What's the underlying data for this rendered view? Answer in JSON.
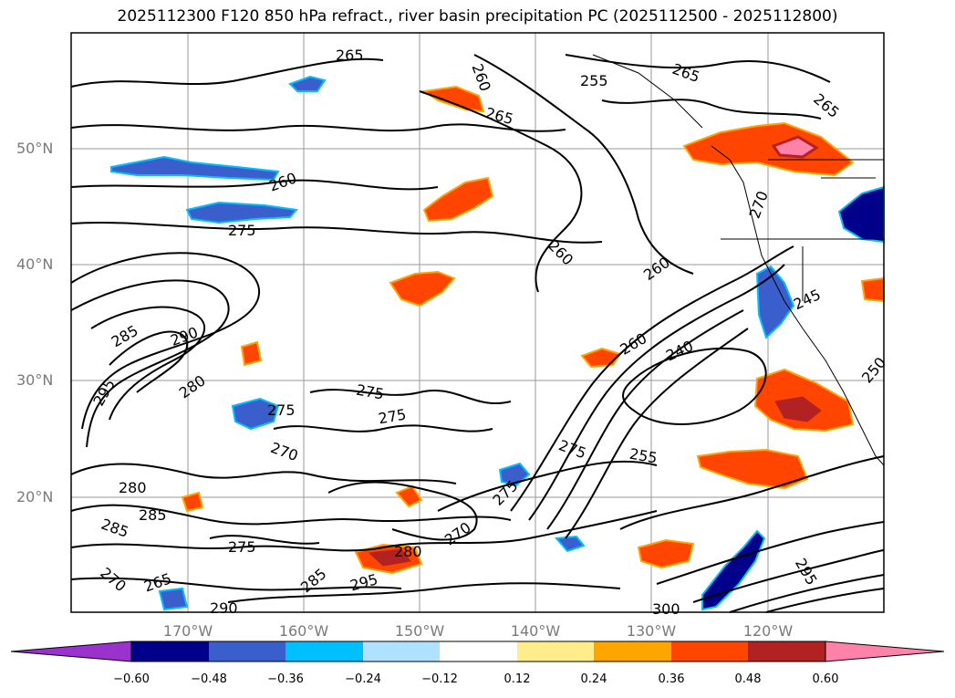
{
  "title": "2025112300 F120 850 hPa refract., river basin precipitation PC (2025112500 - 2025112800)",
  "map": {
    "lat_labels": [
      "50°N",
      "40°N",
      "30°N",
      "20°N"
    ],
    "lon_labels": [
      "170°W",
      "160°W",
      "150°W",
      "140°W",
      "130°W",
      "120°W"
    ],
    "contour_labels": [
      "265",
      "260",
      "265",
      "265",
      "255",
      "260",
      "265",
      "270",
      "275",
      "260",
      "260",
      "285",
      "290",
      "280",
      "295",
      "275",
      "275",
      "275",
      "270",
      "280",
      "285",
      "285",
      "275",
      "265",
      "270",
      "290",
      "285",
      "280",
      "295",
      "275",
      "255",
      "270",
      "240",
      "260",
      "245",
      "250",
      "275",
      "300",
      "295"
    ]
  },
  "colorbar": {
    "colors": [
      "#9a32cd",
      "#00008b",
      "#3a5fcd",
      "#00bfff",
      "#b0e2ff",
      "#ffffff",
      "#ffec8b",
      "#ffa500",
      "#ff4500",
      "#b22222",
      "#ff82ab"
    ],
    "tick_labels": [
      "−0.60",
      "−0.48",
      "−0.36",
      "−0.24",
      "−0.12",
      "0.12",
      "0.24",
      "0.36",
      "0.48",
      "0.60"
    ]
  }
}
